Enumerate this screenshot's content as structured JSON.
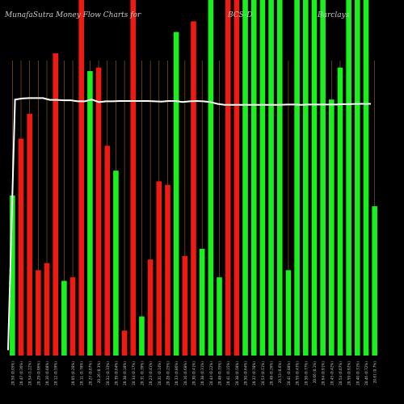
{
  "header": {
    "title_left": "MunafaSutra Money Flow Charts for",
    "title_symbol": "BCS-D",
    "title_name": "Barclays"
  },
  "colors": {
    "background": "#000000",
    "up": "#19f01e",
    "down": "#ef1a12",
    "grid": "#a0641e",
    "price_line": "#ffffff",
    "label": "#c8c8c8"
  },
  "chart_data": {
    "type": "bar",
    "ylim": [
      0,
      100
    ],
    "categories": [
      "(0.05%)",
      "(0.36%)",
      "(1.22%)",
      "(0.96%)",
      "(0.08%)",
      "(0.59%)",
      "(0.06%)",
      "(0.28%)",
      "(0.78%)",
      "(0.07%)",
      "(0.3%)",
      "(0.33%)",
      "(0.04%)",
      "(0.18%)",
      "(0.17%)",
      "(0.39%)",
      "(0.41%)",
      "(0.14%)",
      "(0.25%)",
      "(0.86%)",
      "(0.68%)",
      "(0.41%)",
      "(0.31%)",
      "(0.22%)",
      "(0.35%)",
      "(0.15%)",
      "(0.58%)",
      "(0.64%)",
      "(0.78%)",
      "(0.51%)",
      "(0.26%)",
      "(0.6%)",
      "(0.88%)",
      "(0.43%)",
      "(0.77%)",
      "(0.1%)",
      "(0.91%)",
      "(0.42%)",
      "(0.07%)",
      "(0.92%)",
      "(0.31%)",
      "(0.72%)",
      "(0.7%)"
    ],
    "x_labels": [
      "20.50 (0.05%)",
      "20.47 (0.36%)",
      "20.54 (1.22%)",
      "20.29 (0.96%)",
      "20.10 (0.08%)",
      "20.12 (0.59%)",
      "",
      "20.05 (0.28%)",
      "20.11 (0.78%)",
      "20.27 (0.07%)",
      "20.26 (0.3%)",
      "20.32 (0.33%)",
      "20.39 (0.04%)",
      "20.38 (0.18%)",
      "20.34 (0.17%)",
      "20.31 (0.39%)",
      "20.23 (0.41%)",
      "20.31 (0.14%)",
      "20.28 (0.25%)",
      "20.33 (0.86%)",
      "20.16 (0.68%)",
      "20.30 (0.41%)",
      "20.38 (0.31%)",
      "20.44 (0.22%)",
      "20.48 (0.35%)",
      "20.41 (0.15%)",
      "20.38 (0.58%)",
      "20.50 (0.64%)",
      "20.37 (0.78%)",
      "20.53 (0.51%)",
      "20.48 (0.26%)",
      "20.53 (0.6%)",
      "20.41 (0.88%)",
      "20.59 (0.43%)",
      "20.50 (0.77%)",
      "20.66 (0.1%)",
      "20.64 (0.91%)",
      "20.45 (0.42%)",
      "20.54 (0.07%)",
      "20.59 (0.92%)",
      "20.40 (0.31%)",
      "20.46 (0.72%)",
      "20.61 (0.7%)"
    ],
    "series": [
      {
        "direction": [
          "up",
          "down",
          "down",
          "down",
          "down",
          "down",
          "up",
          "down",
          "down",
          "up",
          "down",
          "down",
          "up",
          "down",
          "down",
          "up",
          "down",
          "down",
          "down",
          "up",
          "down",
          "down",
          "up",
          "up",
          "up",
          "down",
          "down",
          "up",
          "up",
          "up",
          "up",
          "up",
          "up",
          "up",
          "up",
          "up",
          "up",
          "up",
          "up",
          "up",
          "up",
          "up",
          "up"
        ],
        "values": [
          45,
          61,
          68,
          24,
          26,
          85,
          21,
          22,
          100,
          80,
          81,
          59,
          52,
          7,
          100,
          11,
          27,
          49,
          48,
          91,
          28,
          94,
          30,
          100,
          22,
          100,
          100,
          100,
          100,
          100,
          100,
          100,
          24,
          100,
          100,
          100,
          100,
          72,
          81,
          100,
          100,
          100,
          42
        ]
      }
    ],
    "price_line": [
      1.5,
      72,
      72.3,
      72.4,
      72.4,
      72.4,
      71.9,
      71.9,
      71.8,
      71.8,
      71.5,
      71.5,
      72.0,
      71.3,
      71.5,
      71.5,
      71.6,
      71.6,
      71.6,
      71.6,
      71.6,
      71.5,
      71.4,
      71.6,
      71.6,
      71.3,
      71.5,
      71.6,
      71.5,
      71.3,
      70.8,
      70.5,
      70.5,
      70.5,
      70.5,
      70.5,
      70.5,
      70.5,
      70.5,
      70.5,
      70.6,
      70.6,
      70.5,
      70.6,
      70.6,
      70.6,
      70.6,
      70.6,
      70.7,
      70.7,
      70.8,
      70.8,
      70.8
    ]
  }
}
